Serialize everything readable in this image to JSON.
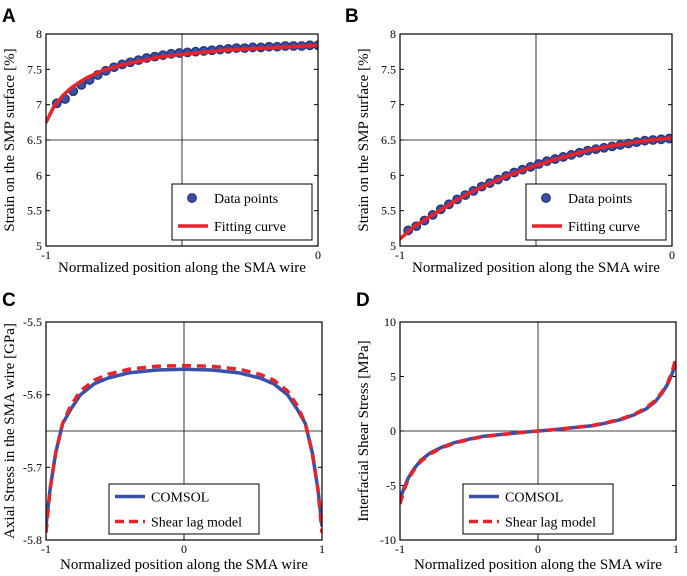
{
  "chart_data": [
    {
      "panel": "A",
      "type": "scatter",
      "xlabel": "Normalized position along the SMA wire",
      "ylabel": "Strain on the SMP surface [%]",
      "xlim": [
        -1,
        0
      ],
      "ylim": [
        5,
        8
      ],
      "xticks": [
        -1,
        0
      ],
      "yticks": [
        5,
        5.5,
        6,
        6.5,
        7,
        7.5,
        8
      ],
      "grid": "center-cross",
      "legend_position": "bottom-right",
      "series": [
        {
          "name": "Data points",
          "kind": "markers",
          "color": "#3a4fa8",
          "x": [
            -0.96,
            -0.93,
            -0.9,
            -0.87,
            -0.84,
            -0.81,
            -0.78,
            -0.75,
            -0.72,
            -0.69,
            -0.66,
            -0.63,
            -0.6,
            -0.57,
            -0.54,
            -0.51,
            -0.48,
            -0.45,
            -0.42,
            -0.39,
            -0.36,
            -0.33,
            -0.3,
            -0.27,
            -0.24,
            -0.21,
            -0.18,
            -0.15,
            -0.12,
            -0.09,
            -0.06,
            -0.03,
            0.0
          ],
          "y": [
            7.02,
            7.08,
            7.19,
            7.28,
            7.35,
            7.42,
            7.48,
            7.53,
            7.57,
            7.6,
            7.63,
            7.66,
            7.68,
            7.7,
            7.72,
            7.73,
            7.74,
            7.75,
            7.76,
            7.77,
            7.78,
            7.79,
            7.8,
            7.8,
            7.81,
            7.81,
            7.82,
            7.82,
            7.83,
            7.83,
            7.83,
            7.84,
            7.84
          ]
        },
        {
          "name": "Fitting curve",
          "kind": "line",
          "color": "#e8232a",
          "x": [
            -1.0,
            -0.97,
            -0.94,
            -0.91,
            -0.88,
            -0.85,
            -0.8,
            -0.75,
            -0.7,
            -0.65,
            -0.6,
            -0.55,
            -0.5,
            -0.45,
            -0.4,
            -0.35,
            -0.3,
            -0.25,
            -0.2,
            -0.15,
            -0.1,
            -0.05,
            0.0
          ],
          "y": [
            6.75,
            6.98,
            7.12,
            7.23,
            7.31,
            7.38,
            7.47,
            7.53,
            7.58,
            7.62,
            7.66,
            7.69,
            7.71,
            7.73,
            7.75,
            7.77,
            7.78,
            7.79,
            7.8,
            7.81,
            7.82,
            7.83,
            7.84
          ]
        }
      ]
    },
    {
      "panel": "B",
      "type": "scatter",
      "xlabel": "Normalized position along the SMA wire",
      "ylabel": "Strain on the SMP surface [%]",
      "xlim": [
        -1,
        0
      ],
      "ylim": [
        5,
        8
      ],
      "xticks": [
        -1,
        0
      ],
      "yticks": [
        5,
        5.5,
        6,
        6.5,
        7,
        7.5,
        8
      ],
      "grid": "center-cross",
      "legend_position": "bottom-right",
      "series": [
        {
          "name": "Data points",
          "kind": "markers",
          "color": "#3a4fa8",
          "x": [
            -0.97,
            -0.94,
            -0.91,
            -0.88,
            -0.85,
            -0.82,
            -0.79,
            -0.76,
            -0.73,
            -0.7,
            -0.67,
            -0.64,
            -0.61,
            -0.58,
            -0.55,
            -0.52,
            -0.49,
            -0.46,
            -0.43,
            -0.4,
            -0.37,
            -0.34,
            -0.31,
            -0.28,
            -0.25,
            -0.22,
            -0.19,
            -0.16,
            -0.13,
            -0.1,
            -0.07,
            -0.04,
            -0.01
          ],
          "y": [
            5.22,
            5.28,
            5.36,
            5.44,
            5.52,
            5.59,
            5.66,
            5.72,
            5.78,
            5.84,
            5.89,
            5.94,
            5.99,
            6.04,
            6.08,
            6.12,
            6.16,
            6.2,
            6.23,
            6.26,
            6.29,
            6.32,
            6.35,
            6.37,
            6.39,
            6.41,
            6.43,
            6.45,
            6.47,
            6.49,
            6.5,
            6.51,
            6.52
          ]
        },
        {
          "name": "Fitting curve",
          "kind": "line",
          "color": "#e8232a",
          "x": [
            -1.0,
            -0.95,
            -0.9,
            -0.85,
            -0.8,
            -0.75,
            -0.7,
            -0.65,
            -0.6,
            -0.55,
            -0.5,
            -0.45,
            -0.4,
            -0.35,
            -0.3,
            -0.25,
            -0.2,
            -0.15,
            -0.1,
            -0.05,
            0.0
          ],
          "y": [
            5.1,
            5.27,
            5.39,
            5.51,
            5.63,
            5.74,
            5.83,
            5.92,
            6.0,
            6.07,
            6.14,
            6.2,
            6.26,
            6.31,
            6.36,
            6.4,
            6.43,
            6.46,
            6.49,
            6.51,
            6.53
          ]
        }
      ]
    },
    {
      "panel": "C",
      "type": "line",
      "xlabel": "Normalized position along the SMA wire",
      "ylabel": "Axial Stress in the SMA wire [GPa]",
      "xlim": [
        -1,
        1
      ],
      "ylim": [
        -5.8,
        -5.5
      ],
      "xticks": [
        -1,
        0,
        1
      ],
      "yticks": [
        -5.8,
        -5.7,
        -5.6,
        -5.5
      ],
      "grid": "center-cross",
      "legend_position": "bottom-center",
      "series": [
        {
          "name": "COMSOL",
          "kind": "line",
          "color": "#3a4fa8",
          "x": [
            -1.0,
            -0.97,
            -0.93,
            -0.88,
            -0.82,
            -0.75,
            -0.65,
            -0.55,
            -0.4,
            -0.2,
            0.0,
            0.2,
            0.4,
            0.55,
            0.65,
            0.75,
            0.82,
            0.88,
            0.93,
            0.97,
            1.0
          ],
          "y": [
            -5.78,
            -5.73,
            -5.68,
            -5.64,
            -5.62,
            -5.6,
            -5.585,
            -5.577,
            -5.57,
            -5.566,
            -5.565,
            -5.566,
            -5.57,
            -5.577,
            -5.585,
            -5.6,
            -5.62,
            -5.64,
            -5.68,
            -5.73,
            -5.78
          ]
        },
        {
          "name": "Shear lag model",
          "kind": "dashed",
          "color": "#e8232a",
          "x": [
            -1.0,
            -0.97,
            -0.93,
            -0.88,
            -0.82,
            -0.75,
            -0.65,
            -0.55,
            -0.4,
            -0.2,
            0.0,
            0.2,
            0.4,
            0.55,
            0.65,
            0.75,
            0.82,
            0.88,
            0.93,
            0.97,
            1.0
          ],
          "y": [
            -5.79,
            -5.73,
            -5.68,
            -5.64,
            -5.615,
            -5.595,
            -5.58,
            -5.572,
            -5.565,
            -5.561,
            -5.56,
            -5.561,
            -5.565,
            -5.572,
            -5.58,
            -5.595,
            -5.615,
            -5.64,
            -5.68,
            -5.73,
            -5.79
          ]
        }
      ]
    },
    {
      "panel": "D",
      "type": "line",
      "xlabel": "Normalized position along the SMA wire",
      "ylabel": "Interfacial Shear Stress [MPa]",
      "xlim": [
        -1,
        1
      ],
      "ylim": [
        -10,
        10
      ],
      "xticks": [
        -1,
        0,
        1
      ],
      "yticks": [
        -10,
        -5,
        0,
        5,
        10
      ],
      "grid": "center-cross",
      "legend_position": "bottom-center",
      "series": [
        {
          "name": "COMSOL",
          "kind": "line",
          "color": "#3a4fa8",
          "x": [
            -1.0,
            -0.97,
            -0.94,
            -0.9,
            -0.85,
            -0.78,
            -0.7,
            -0.6,
            -0.5,
            -0.4,
            -0.25,
            -0.1,
            0.0,
            0.1,
            0.25,
            0.4,
            0.5,
            0.6,
            0.7,
            0.78,
            0.85,
            0.9,
            0.94,
            0.97,
            1.0
          ],
          "y": [
            -6.3,
            -5.2,
            -4.3,
            -3.5,
            -2.7,
            -2.0,
            -1.5,
            -1.05,
            -0.75,
            -0.5,
            -0.3,
            -0.1,
            0.0,
            0.1,
            0.3,
            0.5,
            0.75,
            1.05,
            1.5,
            2.0,
            2.7,
            3.5,
            4.3,
            5.2,
            6.3
          ]
        },
        {
          "name": "Shear lag model",
          "kind": "dashed",
          "color": "#e8232a",
          "x": [
            -1.0,
            -0.97,
            -0.94,
            -0.9,
            -0.85,
            -0.78,
            -0.7,
            -0.6,
            -0.5,
            -0.4,
            -0.25,
            -0.1,
            0.0,
            0.1,
            0.25,
            0.4,
            0.5,
            0.6,
            0.7,
            0.78,
            0.85,
            0.9,
            0.94,
            0.97,
            1.0
          ],
          "y": [
            -6.7,
            -5.4,
            -4.4,
            -3.6,
            -2.8,
            -2.1,
            -1.55,
            -1.1,
            -0.78,
            -0.52,
            -0.3,
            -0.1,
            0.0,
            0.1,
            0.3,
            0.52,
            0.78,
            1.1,
            1.55,
            2.1,
            2.8,
            3.6,
            4.4,
            5.4,
            6.7
          ]
        }
      ]
    }
  ]
}
